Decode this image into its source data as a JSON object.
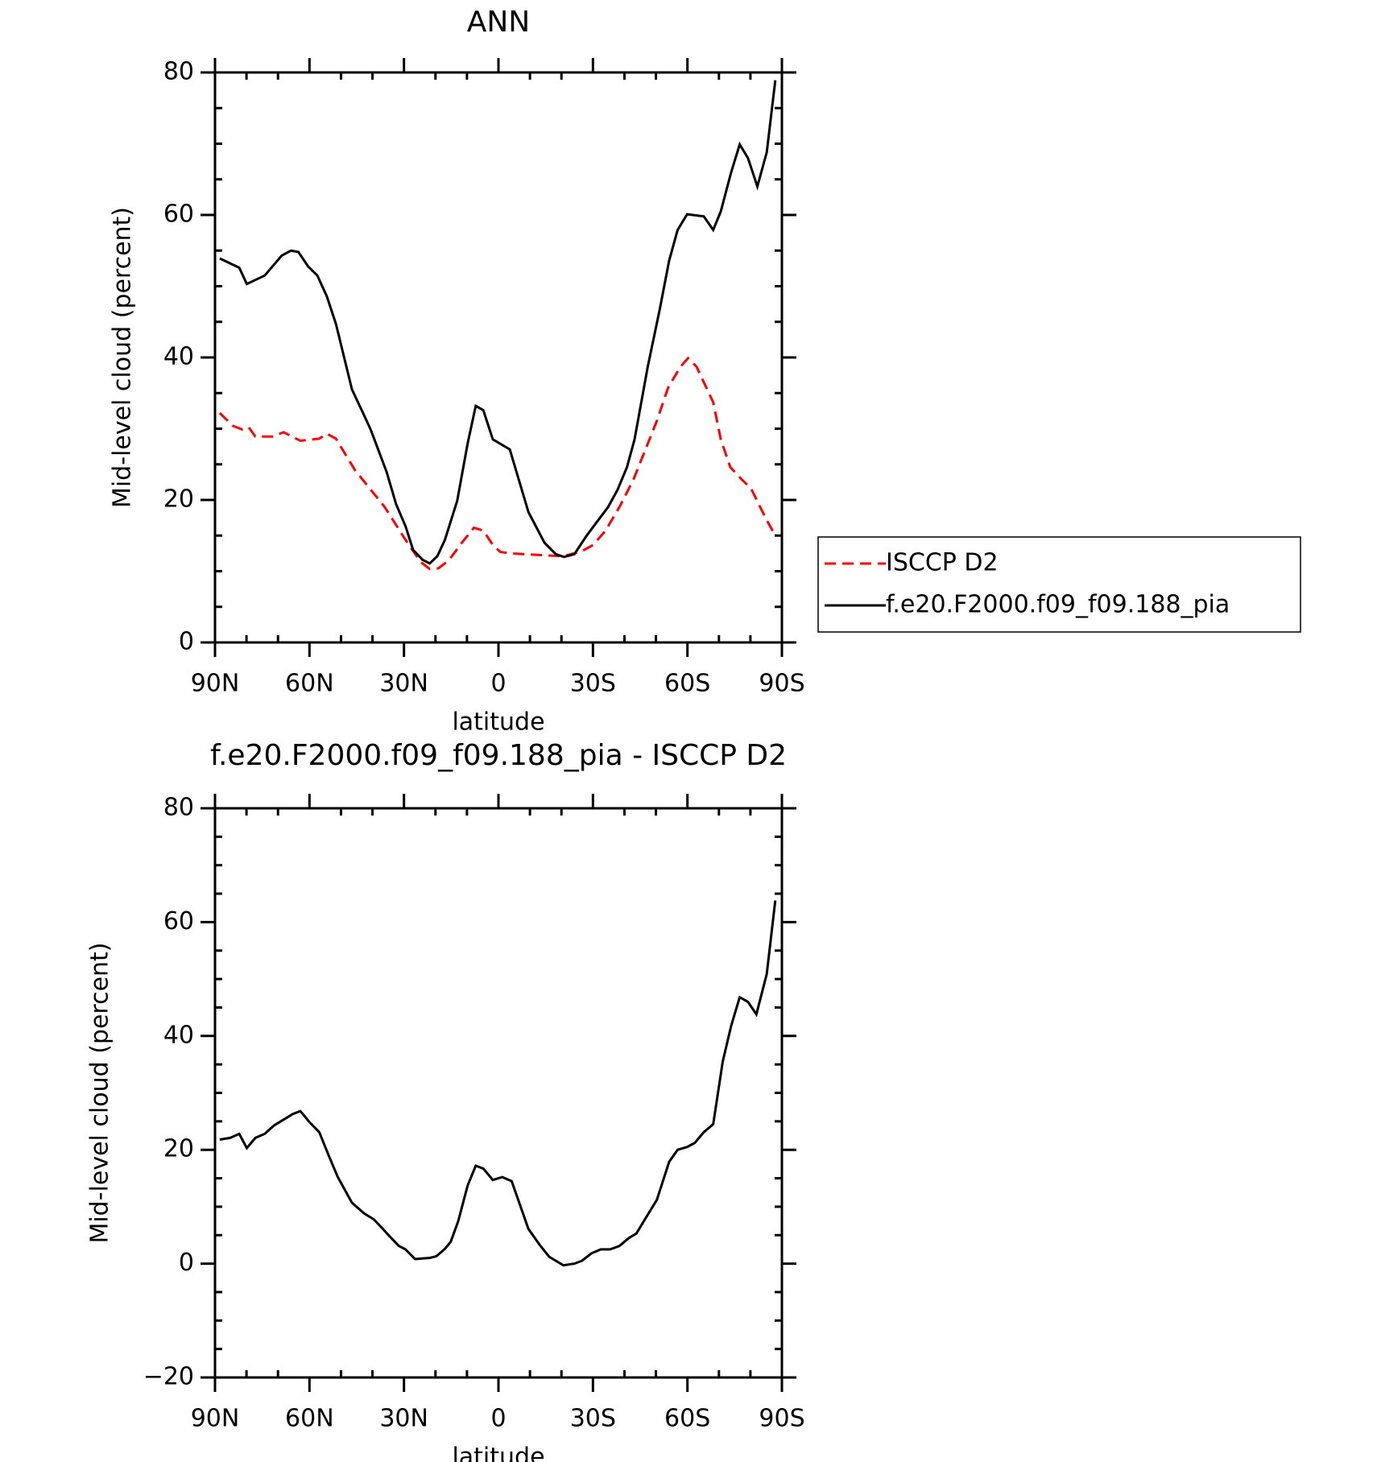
{
  "chart_data": [
    {
      "type": "line",
      "title": "ANN",
      "xlabel": "latitude",
      "ylabel": "Mid-level cloud (percent)",
      "xlim": [
        90,
        -90
      ],
      "xticks": [
        {
          "value": 90,
          "label": "90N"
        },
        {
          "value": 60,
          "label": "60N"
        },
        {
          "value": 30,
          "label": "30N"
        },
        0,
        {
          "value": -30,
          "label": "30S"
        },
        {
          "value": -60,
          "label": "60S"
        },
        {
          "value": -90,
          "label": "90S"
        }
      ],
      "ylim": [
        0,
        80
      ],
      "yticks": [
        0,
        20,
        40,
        60,
        80
      ],
      "legend": "right",
      "series": [
        {
          "name": "ISCCP D2",
          "color": "#ff0000",
          "line_style": "dashed",
          "x": [
            88.5,
            84.3,
            81.4,
            79.3,
            77.2,
            71.8,
            68.2,
            62.9,
            56.9,
            54.5,
            51.6,
            45.6,
            41.4,
            36.1,
            29.5,
            24.7,
            21.8,
            19.1,
            15.8,
            11.6,
            7.8,
            4.8,
            1.8,
            -0.6,
            -4.2,
            -11.6,
            -20.6,
            -26.5,
            -30.1,
            -34,
            -38.4,
            -42.9,
            -50.3,
            -53.9,
            -57.8,
            -60.2,
            -62.9,
            -68.2,
            -70.6,
            -73.6,
            -77.2,
            -80.2,
            -83.1,
            -85.5,
            -87.9
          ],
          "values": [
            32.2,
            30.4,
            29.9,
            30.2,
            28.9,
            28.9,
            29.5,
            28.3,
            28.6,
            29.3,
            28.6,
            24.2,
            21.9,
            19,
            14.4,
            11.3,
            10.3,
            10.4,
            11.5,
            14,
            16.1,
            15.7,
            13.7,
            12.7,
            12.5,
            12.3,
            12.1,
            12.8,
            13.7,
            15.7,
            19,
            22.9,
            31.1,
            35.8,
            38.7,
            39.9,
            38.7,
            33.7,
            28.5,
            24.6,
            22.9,
            21.6,
            19,
            16.9,
            15
          ]
        },
        {
          "name": "f.e20.F2000.f09_f09.188_pia",
          "color": "#000000",
          "line_style": "solid",
          "x": [
            88.5,
            82.3,
            79.9,
            74.2,
            68.8,
            65.9,
            63.5,
            60.5,
            57.5,
            54.5,
            51.6,
            46.5,
            43.2,
            40.5,
            35.5,
            32.5,
            29.5,
            27.1,
            24.1,
            21.8,
            19.4,
            17,
            13.1,
            9.8,
            7.2,
            4.8,
            1.8,
            -3.6,
            -9.5,
            -14.6,
            -18.2,
            -20.8,
            -24.1,
            -28,
            -34.8,
            -37.8,
            -40.8,
            -43.2,
            -47.4,
            -51.2,
            -54.2,
            -56.9,
            -59.9,
            -65.2,
            -68.2,
            -70.6,
            -73.9,
            -76.6,
            -79.2,
            -82.2,
            -85.2,
            -87.9
          ],
          "values": [
            53.9,
            52.6,
            50.3,
            51.5,
            54.3,
            55,
            54.8,
            52.8,
            51.5,
            48.6,
            44.7,
            35.5,
            32.4,
            29.8,
            23.9,
            19.4,
            16.3,
            13,
            11.6,
            11.1,
            12.1,
            14.4,
            19.9,
            27.9,
            33.2,
            32.6,
            28.5,
            27.1,
            18.3,
            14,
            12.4,
            12,
            12.4,
            15,
            19,
            21.4,
            24.6,
            28.5,
            38.7,
            46.7,
            53.6,
            57.9,
            60.1,
            59.8,
            57.9,
            60.5,
            66,
            69.9,
            68,
            64,
            68.8,
            78.9
          ]
        }
      ]
    },
    {
      "type": "line",
      "title": "f.e20.F2000.f09_f09.188_pia - ISCCP D2",
      "xlabel": "latitude",
      "ylabel": "Mid-level cloud (percent)",
      "xlim": [
        90,
        -90
      ],
      "xticks": [
        {
          "value": 90,
          "label": "90N"
        },
        {
          "value": 60,
          "label": "60N"
        },
        {
          "value": 30,
          "label": "30N"
        },
        0,
        {
          "value": -30,
          "label": "30S"
        },
        {
          "value": -60,
          "label": "60S"
        },
        {
          "value": -90,
          "label": "90S"
        }
      ],
      "ylim": [
        -20,
        80
      ],
      "yticks": [
        {
          "value": -20,
          "label": "−20"
        },
        0,
        20,
        40,
        60,
        80
      ],
      "series": [
        {
          "color": "#000000",
          "line_style": "solid",
          "x": [
            88.5,
            85.2,
            82.3,
            79.9,
            77.2,
            74.2,
            71.2,
            68.2,
            65.3,
            62.9,
            59.9,
            56.9,
            53.9,
            51,
            46.5,
            42.6,
            39.6,
            36.7,
            34.9,
            31.6,
            29.5,
            26.5,
            21.8,
            19.7,
            17,
            15.2,
            12.8,
            9.8,
            7.2,
            4.8,
            1.8,
            -1.2,
            -4.2,
            -9.5,
            -13.1,
            -16.1,
            -20.6,
            -24.1,
            -26.5,
            -29.5,
            -32.5,
            -35.4,
            -38.4,
            -41.4,
            -43.8,
            -47.4,
            -50.3,
            -54.2,
            -56.9,
            -59.9,
            -62.3,
            -65.2,
            -68.2,
            -71.2,
            -73.9,
            -76.6,
            -79.2,
            -81.9,
            -85.2,
            -87.9
          ],
          "values": [
            21.8,
            22.1,
            22.8,
            20.3,
            22.1,
            22.8,
            24.3,
            25.3,
            26.3,
            26.8,
            24.8,
            23.1,
            19,
            15.2,
            10.7,
            8.8,
            7.8,
            6.1,
            5,
            3.1,
            2.5,
            0.8,
            1,
            1.3,
            2.6,
            3.8,
            7.4,
            13.7,
            17.2,
            16.7,
            14.7,
            15.2,
            14.5,
            6.1,
            3.3,
            1.2,
            -0.3,
            0,
            0.5,
            1.8,
            2.5,
            2.5,
            3.1,
            4.5,
            5.3,
            8.6,
            11.2,
            17.9,
            20,
            20.5,
            21.2,
            23.1,
            24.5,
            35.5,
            41.8,
            46.8,
            46,
            43.8,
            50.9,
            63.8
          ]
        }
      ]
    }
  ]
}
